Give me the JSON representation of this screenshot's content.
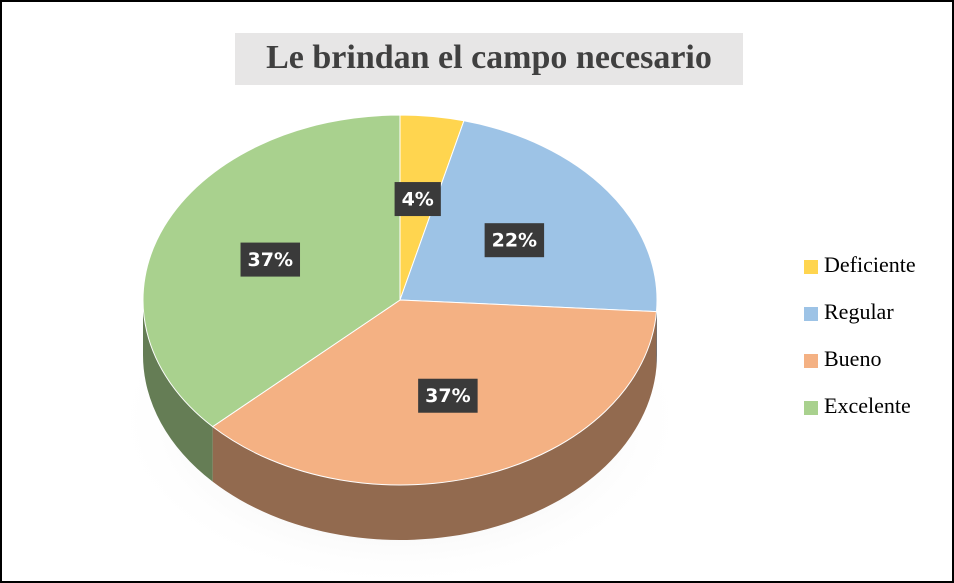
{
  "chart_data": {
    "type": "pie",
    "title": "Le brindan el campo necesario",
    "categories": [
      "Deficiente",
      "Regular",
      "Bueno",
      "Excelente"
    ],
    "values": [
      4,
      22,
      37,
      37
    ],
    "value_labels": [
      "4%",
      "22%",
      "37%",
      "37%"
    ],
    "colors": [
      "#ffd54f",
      "#9dc3e6",
      "#f4b183",
      "#a9d18e"
    ],
    "legend": "right"
  }
}
